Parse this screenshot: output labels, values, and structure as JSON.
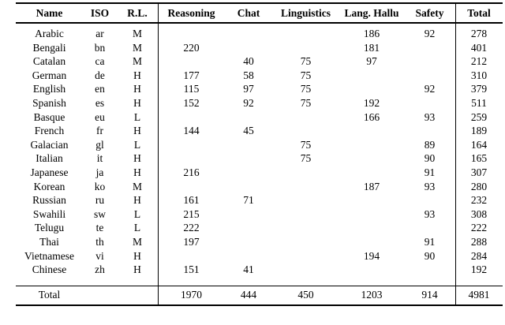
{
  "colors": {
    "text": "#000000",
    "background": "#ffffff",
    "rule": "#000000"
  },
  "table": {
    "columns": [
      "Name",
      "ISO",
      "R.L.",
      "Reasoning",
      "Chat",
      "Linguistics",
      "Lang. Hallu",
      "Safety",
      "Total"
    ],
    "rows": [
      {
        "name": "Arabic",
        "iso": "ar",
        "rl": "M",
        "reasoning": "",
        "chat": "",
        "linguistics": "",
        "lang_hallu": "186",
        "safety": "92",
        "total": "278"
      },
      {
        "name": "Bengali",
        "iso": "bn",
        "rl": "M",
        "reasoning": "220",
        "chat": "",
        "linguistics": "",
        "lang_hallu": "181",
        "safety": "",
        "total": "401"
      },
      {
        "name": "Catalan",
        "iso": "ca",
        "rl": "M",
        "reasoning": "",
        "chat": "40",
        "linguistics": "75",
        "lang_hallu": "97",
        "safety": "",
        "total": "212"
      },
      {
        "name": "German",
        "iso": "de",
        "rl": "H",
        "reasoning": "177",
        "chat": "58",
        "linguistics": "75",
        "lang_hallu": "",
        "safety": "",
        "total": "310"
      },
      {
        "name": "English",
        "iso": "en",
        "rl": "H",
        "reasoning": "115",
        "chat": "97",
        "linguistics": "75",
        "lang_hallu": "",
        "safety": "92",
        "total": "379"
      },
      {
        "name": "Spanish",
        "iso": "es",
        "rl": "H",
        "reasoning": "152",
        "chat": "92",
        "linguistics": "75",
        "lang_hallu": "192",
        "safety": "",
        "total": "511"
      },
      {
        "name": "Basque",
        "iso": "eu",
        "rl": "L",
        "reasoning": "",
        "chat": "",
        "linguistics": "",
        "lang_hallu": "166",
        "safety": "93",
        "total": "259"
      },
      {
        "name": "French",
        "iso": "fr",
        "rl": "H",
        "reasoning": "144",
        "chat": "45",
        "linguistics": "",
        "lang_hallu": "",
        "safety": "",
        "total": "189"
      },
      {
        "name": "Galacian",
        "iso": "gl",
        "rl": "L",
        "reasoning": "",
        "chat": "",
        "linguistics": "75",
        "lang_hallu": "",
        "safety": "89",
        "total": "164"
      },
      {
        "name": "Italian",
        "iso": "it",
        "rl": "H",
        "reasoning": "",
        "chat": "",
        "linguistics": "75",
        "lang_hallu": "",
        "safety": "90",
        "total": "165"
      },
      {
        "name": "Japanese",
        "iso": "ja",
        "rl": "H",
        "reasoning": "216",
        "chat": "",
        "linguistics": "",
        "lang_hallu": "",
        "safety": "91",
        "total": "307"
      },
      {
        "name": "Korean",
        "iso": "ko",
        "rl": "M",
        "reasoning": "",
        "chat": "",
        "linguistics": "",
        "lang_hallu": "187",
        "safety": "93",
        "total": "280"
      },
      {
        "name": "Russian",
        "iso": "ru",
        "rl": "H",
        "reasoning": "161",
        "chat": "71",
        "linguistics": "",
        "lang_hallu": "",
        "safety": "",
        "total": "232"
      },
      {
        "name": "Swahili",
        "iso": "sw",
        "rl": "L",
        "reasoning": "215",
        "chat": "",
        "linguistics": "",
        "lang_hallu": "",
        "safety": "93",
        "total": "308"
      },
      {
        "name": "Telugu",
        "iso": "te",
        "rl": "L",
        "reasoning": "222",
        "chat": "",
        "linguistics": "",
        "lang_hallu": "",
        "safety": "",
        "total": "222"
      },
      {
        "name": "Thai",
        "iso": "th",
        "rl": "M",
        "reasoning": "197",
        "chat": "",
        "linguistics": "",
        "lang_hallu": "",
        "safety": "91",
        "total": "288"
      },
      {
        "name": "Vietnamese",
        "iso": "vi",
        "rl": "H",
        "reasoning": "",
        "chat": "",
        "linguistics": "",
        "lang_hallu": "194",
        "safety": "90",
        "total": "284"
      },
      {
        "name": "Chinese",
        "iso": "zh",
        "rl": "H",
        "reasoning": "151",
        "chat": "41",
        "linguistics": "",
        "lang_hallu": "",
        "safety": "",
        "total": "192"
      }
    ],
    "total_row": {
      "label": "Total",
      "iso": "",
      "rl": "",
      "reasoning": "1970",
      "chat": "444",
      "linguistics": "450",
      "lang_hallu": "1203",
      "safety": "914",
      "total": "4981"
    }
  }
}
